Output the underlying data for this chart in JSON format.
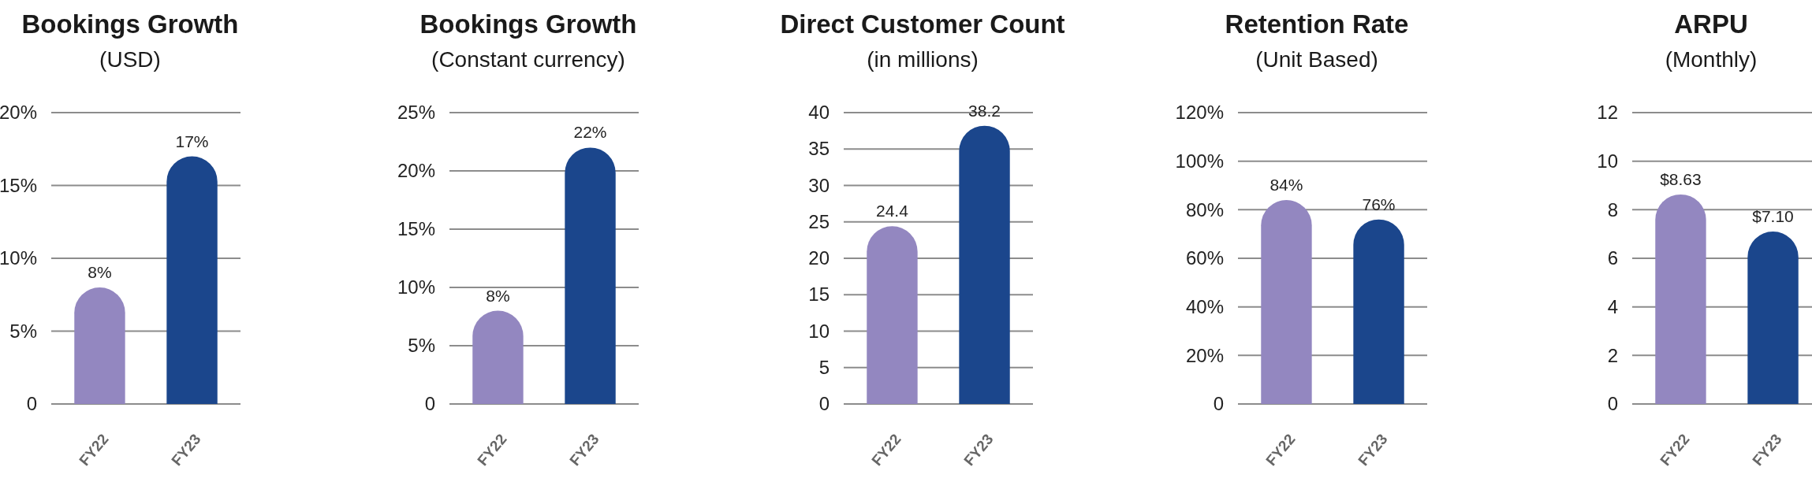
{
  "chart_data": [
    {
      "type": "bar",
      "title": "Bookings Growth",
      "subtitle": "(USD)",
      "categories": [
        "FY22",
        "FY23"
      ],
      "values": [
        8,
        17
      ],
      "colors": [
        "#9387c0",
        "#1b468c"
      ],
      "value_labels": [
        "8%",
        "17%"
      ],
      "ylim": [
        0,
        20
      ],
      "yticks": [
        0,
        {
          "value": 5,
          "label": "5%"
        },
        {
          "value": 10,
          "label": "10%"
        },
        {
          "value": 15,
          "label": "15%"
        },
        {
          "value": 20,
          "label": "20%"
        }
      ],
      "grid": "y"
    },
    {
      "type": "bar",
      "title": "Bookings Growth",
      "subtitle": "(Constant currency)",
      "categories": [
        "FY22",
        "FY23"
      ],
      "values": [
        8,
        22
      ],
      "colors": [
        "#9387c0",
        "#1b468c"
      ],
      "value_labels": [
        "8%",
        "22%"
      ],
      "ylim": [
        0,
        25
      ],
      "yticks": [
        0,
        {
          "value": 5,
          "label": "5%"
        },
        {
          "value": 10,
          "label": "10%"
        },
        {
          "value": 15,
          "label": "15%"
        },
        {
          "value": 20,
          "label": "20%"
        },
        {
          "value": 25,
          "label": "25%"
        }
      ],
      "grid": "y"
    },
    {
      "type": "bar",
      "title": "Direct Customer Count",
      "subtitle": "(in millions)",
      "categories": [
        "FY22",
        "FY23"
      ],
      "values": [
        24.4,
        38.2
      ],
      "colors": [
        "#9387c0",
        "#1b468c"
      ],
      "value_labels": [
        "24.4",
        "38.2"
      ],
      "ylim": [
        0,
        40
      ],
      "yticks": [
        0,
        5,
        10,
        15,
        20,
        25,
        30,
        35,
        40
      ],
      "grid": "y"
    },
    {
      "type": "bar",
      "title": "Retention Rate",
      "subtitle": "(Unit Based)",
      "categories": [
        "FY22",
        "FY23"
      ],
      "values": [
        84,
        76
      ],
      "colors": [
        "#9387c0",
        "#1b468c"
      ],
      "value_labels": [
        "84%",
        "76%"
      ],
      "ylim": [
        0,
        120
      ],
      "yticks": [
        0,
        {
          "value": 20,
          "label": "20%"
        },
        {
          "value": 40,
          "label": "40%"
        },
        {
          "value": 60,
          "label": "60%"
        },
        {
          "value": 80,
          "label": "80%"
        },
        {
          "value": 100,
          "label": "100%"
        },
        {
          "value": 120,
          "label": "120%"
        }
      ],
      "grid": "y"
    },
    {
      "type": "bar",
      "title": "ARPU",
      "subtitle": "(Monthly)",
      "categories": [
        "FY22",
        "FY23"
      ],
      "values": [
        8.63,
        7.1
      ],
      "colors": [
        "#9387c0",
        "#1b468c"
      ],
      "value_labels": [
        "$8.63",
        "$7.10"
      ],
      "ylim": [
        0,
        12
      ],
      "yticks": [
        0,
        2,
        4,
        6,
        8,
        10,
        12
      ],
      "grid": "y"
    }
  ]
}
